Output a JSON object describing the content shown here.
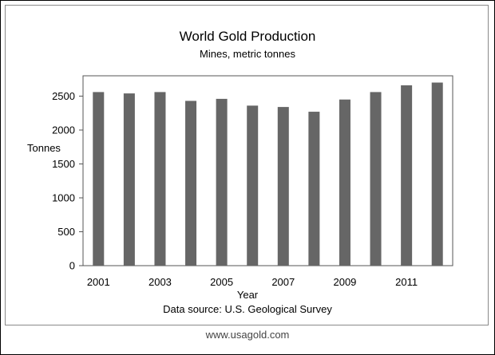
{
  "chart_data": {
    "type": "bar",
    "title": "World Gold Production",
    "subtitle": "Mines, metric tonnes",
    "xlabel": "Year",
    "ylabel": "Tonnes",
    "source": "Data source:  U.S. Geological Survey",
    "categories": [
      "2001",
      "2002",
      "2003",
      "2004",
      "2005",
      "2006",
      "2007",
      "2008",
      "2009",
      "2010",
      "2011",
      "2012"
    ],
    "x_tick_labels": [
      "2001",
      "2003",
      "2005",
      "2007",
      "2009",
      "2011"
    ],
    "values": [
      2560,
      2540,
      2560,
      2430,
      2460,
      2360,
      2340,
      2270,
      2450,
      2560,
      2660,
      2700
    ],
    "ylim": [
      0,
      2800
    ],
    "y_ticks": [
      0,
      500,
      1000,
      1500,
      2000,
      2500
    ],
    "bar_color": "#666666",
    "grid": false
  },
  "footer": "www.usagold.com"
}
